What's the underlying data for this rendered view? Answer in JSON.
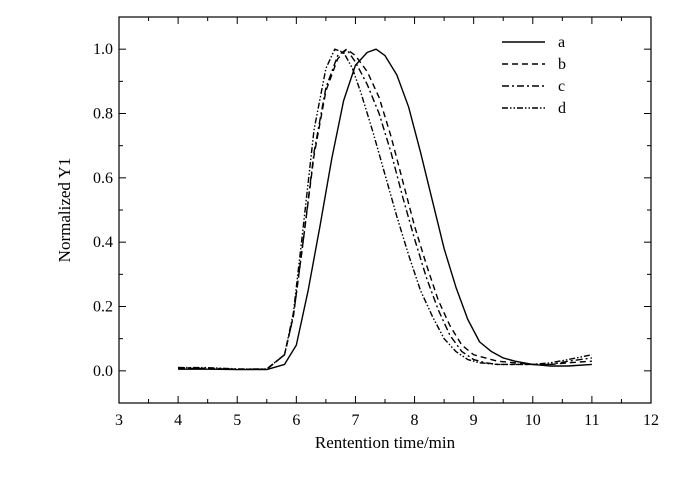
{
  "chart_data": {
    "type": "line",
    "title": "",
    "xlabel": "Rentention time/min",
    "ylabel": "Normalized Y1",
    "xlim": [
      3,
      12
    ],
    "ylim": [
      -0.1,
      1.1
    ],
    "xticks": [
      3,
      4,
      5,
      6,
      7,
      8,
      9,
      10,
      11,
      12
    ],
    "yticks": [
      0.0,
      0.2,
      0.4,
      0.6,
      0.8,
      1.0
    ],
    "xtick_labels": [
      "3",
      "4",
      "5",
      "6",
      "7",
      "8",
      "9",
      "10",
      "11",
      "12"
    ],
    "ytick_labels": [
      "0.0",
      "0.2",
      "0.4",
      "0.6",
      "0.8",
      "1.0"
    ],
    "grid": false,
    "legend_position": "top-right",
    "series": [
      {
        "name": "a",
        "style": "solid",
        "x": [
          4.0,
          4.5,
          5.0,
          5.5,
          5.8,
          6.0,
          6.2,
          6.4,
          6.6,
          6.8,
          7.0,
          7.2,
          7.35,
          7.5,
          7.7,
          7.9,
          8.1,
          8.3,
          8.5,
          8.7,
          8.9,
          9.1,
          9.3,
          9.5,
          9.7,
          10.0,
          10.3,
          10.6,
          11.0
        ],
        "y": [
          0.005,
          0.005,
          0.004,
          0.004,
          0.02,
          0.08,
          0.25,
          0.45,
          0.66,
          0.84,
          0.95,
          0.99,
          1.0,
          0.98,
          0.92,
          0.82,
          0.68,
          0.53,
          0.38,
          0.26,
          0.16,
          0.09,
          0.06,
          0.04,
          0.03,
          0.02,
          0.015,
          0.015,
          0.02
        ]
      },
      {
        "name": "b",
        "style": "dashed",
        "x": [
          4.0,
          4.5,
          5.0,
          5.5,
          5.8,
          5.95,
          6.1,
          6.3,
          6.5,
          6.7,
          6.85,
          7.0,
          7.2,
          7.4,
          7.6,
          7.8,
          8.0,
          8.2,
          8.4,
          8.6,
          8.8,
          9.0,
          9.2,
          9.4,
          9.7,
          10.0,
          10.3,
          10.6,
          11.0
        ],
        "y": [
          0.008,
          0.007,
          0.005,
          0.005,
          0.05,
          0.17,
          0.38,
          0.67,
          0.87,
          0.97,
          1.0,
          0.98,
          0.93,
          0.85,
          0.73,
          0.59,
          0.45,
          0.33,
          0.22,
          0.14,
          0.08,
          0.05,
          0.04,
          0.03,
          0.025,
          0.02,
          0.02,
          0.025,
          0.03
        ]
      },
      {
        "name": "c",
        "style": "dash-dot",
        "x": [
          4.0,
          4.5,
          5.0,
          5.5,
          5.8,
          5.95,
          6.1,
          6.3,
          6.5,
          6.7,
          6.85,
          7.0,
          7.2,
          7.4,
          7.6,
          7.8,
          8.0,
          8.2,
          8.4,
          8.6,
          8.8,
          9.0,
          9.2,
          9.4,
          9.7,
          10.0,
          10.3,
          10.6,
          11.0
        ],
        "y": [
          0.01,
          0.008,
          0.005,
          0.005,
          0.05,
          0.17,
          0.38,
          0.68,
          0.88,
          0.98,
          1.0,
          0.96,
          0.89,
          0.8,
          0.68,
          0.54,
          0.41,
          0.29,
          0.19,
          0.11,
          0.06,
          0.035,
          0.025,
          0.02,
          0.02,
          0.02,
          0.02,
          0.03,
          0.04
        ]
      },
      {
        "name": "d",
        "style": "dash-dot-dot",
        "x": [
          4.0,
          4.5,
          5.0,
          5.5,
          5.8,
          5.95,
          6.1,
          6.3,
          6.5,
          6.65,
          6.8,
          6.95,
          7.1,
          7.3,
          7.5,
          7.7,
          7.9,
          8.1,
          8.3,
          8.5,
          8.7,
          8.9,
          9.1,
          9.4,
          9.7,
          10.0,
          10.3,
          10.6,
          11.0
        ],
        "y": [
          0.01,
          0.01,
          0.006,
          0.006,
          0.05,
          0.18,
          0.42,
          0.75,
          0.94,
          1.0,
          0.99,
          0.94,
          0.86,
          0.74,
          0.61,
          0.48,
          0.36,
          0.25,
          0.17,
          0.1,
          0.06,
          0.035,
          0.025,
          0.02,
          0.02,
          0.02,
          0.025,
          0.035,
          0.05
        ]
      }
    ]
  }
}
